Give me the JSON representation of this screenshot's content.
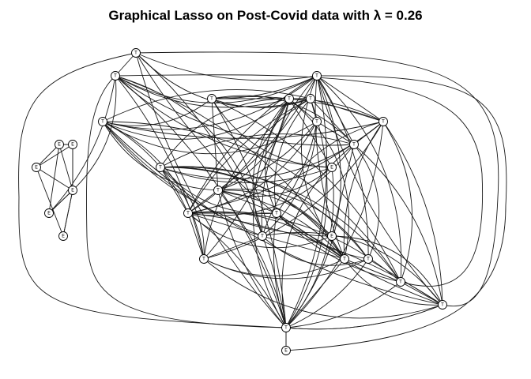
{
  "title": "Graphical Lasso on Post-Covid data with λ =  0.26",
  "nodes": [
    {
      "id": "n1",
      "label": "T"
    },
    {
      "id": "n2",
      "label": "T"
    },
    {
      "id": "n3",
      "label": "T"
    },
    {
      "id": "n4",
      "label": "T"
    },
    {
      "id": "n5",
      "label": "T"
    },
    {
      "id": "n6",
      "label": "E"
    },
    {
      "id": "n7",
      "label": "E"
    },
    {
      "id": "n8",
      "label": "E"
    },
    {
      "id": "n9",
      "label": "E"
    },
    {
      "id": "n10",
      "label": "E"
    },
    {
      "id": "n11",
      "label": "E"
    },
    {
      "id": "n12",
      "label": "E"
    },
    {
      "id": "n13",
      "label": "T"
    },
    {
      "id": "n14",
      "label": "T"
    },
    {
      "id": "n15",
      "label": "T"
    },
    {
      "id": "n16",
      "label": "T"
    },
    {
      "id": "n17",
      "label": "T"
    },
    {
      "id": "n18",
      "label": "T"
    },
    {
      "id": "n19",
      "label": "E"
    },
    {
      "id": "n20",
      "label": "E"
    },
    {
      "id": "n21",
      "label": "T"
    },
    {
      "id": "n22",
      "label": "T"
    },
    {
      "id": "n23",
      "label": "T"
    },
    {
      "id": "n24",
      "label": "T"
    },
    {
      "id": "n25",
      "label": "T"
    },
    {
      "id": "n26",
      "label": "T"
    },
    {
      "id": "n27",
      "label": "E"
    },
    {
      "id": "n28",
      "label": "T"
    },
    {
      "id": "n29",
      "label": "T"
    },
    {
      "id": "n30",
      "label": "T"
    },
    {
      "id": "n31",
      "label": "T"
    },
    {
      "id": "n32",
      "label": "T"
    },
    {
      "id": "n33",
      "label": "E"
    }
  ],
  "edges": [
    [
      "n1",
      "n2"
    ],
    [
      "n1",
      "n3"
    ],
    [
      "n1",
      "n31"
    ],
    [
      "n1",
      "n30"
    ],
    [
      "n1",
      "n32"
    ],
    [
      "n1",
      "n14"
    ],
    [
      "n2",
      "n3"
    ],
    [
      "n2",
      "n13"
    ],
    [
      "n2",
      "n11"
    ],
    [
      "n2",
      "n12"
    ],
    [
      "n2",
      "n19"
    ],
    [
      "n2",
      "n24"
    ],
    [
      "n2",
      "n25"
    ],
    [
      "n2",
      "n31"
    ],
    [
      "n2",
      "n17"
    ],
    [
      "n2",
      "n26"
    ],
    [
      "n3",
      "n4"
    ],
    [
      "n3",
      "n5"
    ],
    [
      "n3",
      "n16"
    ],
    [
      "n3",
      "n17"
    ],
    [
      "n3",
      "n21"
    ],
    [
      "n3",
      "n28"
    ],
    [
      "n3",
      "n29"
    ],
    [
      "n3",
      "n30"
    ],
    [
      "n3",
      "n24"
    ],
    [
      "n3",
      "n25"
    ],
    [
      "n3",
      "n22"
    ],
    [
      "n3",
      "n31"
    ],
    [
      "n3",
      "n32"
    ],
    [
      "n3",
      "n27"
    ],
    [
      "n4",
      "n13"
    ],
    [
      "n4",
      "n14"
    ],
    [
      "n4",
      "n16"
    ],
    [
      "n4",
      "n21"
    ],
    [
      "n4",
      "n5"
    ],
    [
      "n4",
      "n17"
    ],
    [
      "n4",
      "n29"
    ],
    [
      "n4",
      "n31"
    ],
    [
      "n4",
      "n19"
    ],
    [
      "n5",
      "n13"
    ],
    [
      "n5",
      "n14"
    ],
    [
      "n5",
      "n16"
    ],
    [
      "n5",
      "n15"
    ],
    [
      "n5",
      "n21"
    ],
    [
      "n5",
      "n20"
    ],
    [
      "n5",
      "n22"
    ],
    [
      "n5",
      "n24"
    ],
    [
      "n5",
      "n26"
    ],
    [
      "n5",
      "n29"
    ],
    [
      "n5",
      "n30"
    ],
    [
      "n6",
      "n7"
    ],
    [
      "n6",
      "n8"
    ],
    [
      "n6",
      "n9"
    ],
    [
      "n6",
      "n11"
    ],
    [
      "n7",
      "n9"
    ],
    [
      "n7",
      "n8"
    ],
    [
      "n7",
      "n12"
    ],
    [
      "n8",
      "n10"
    ],
    [
      "n8",
      "n12"
    ],
    [
      "n9",
      "n10"
    ],
    [
      "n9",
      "n11"
    ],
    [
      "n10",
      "n12"
    ],
    [
      "n11",
      "n12"
    ],
    [
      "n13",
      "n14"
    ],
    [
      "n13",
      "n15"
    ],
    [
      "n13",
      "n16"
    ],
    [
      "n13",
      "n18"
    ],
    [
      "n13",
      "n21"
    ],
    [
      "n13",
      "n22"
    ],
    [
      "n13",
      "n24"
    ],
    [
      "n13",
      "n27"
    ],
    [
      "n13",
      "n23"
    ],
    [
      "n13",
      "n19"
    ],
    [
      "n13",
      "n26"
    ],
    [
      "n14",
      "n15"
    ],
    [
      "n14",
      "n16"
    ],
    [
      "n14",
      "n17"
    ],
    [
      "n14",
      "n22"
    ],
    [
      "n14",
      "n23"
    ],
    [
      "n14",
      "n26"
    ],
    [
      "n15",
      "n17"
    ],
    [
      "n15",
      "n21"
    ],
    [
      "n15",
      "n22"
    ],
    [
      "n15",
      "n23"
    ],
    [
      "n15",
      "n24"
    ],
    [
      "n16",
      "n17"
    ],
    [
      "n16",
      "n18"
    ],
    [
      "n16",
      "n22"
    ],
    [
      "n16",
      "n24"
    ],
    [
      "n16",
      "n26"
    ],
    [
      "n16",
      "n25"
    ],
    [
      "n16",
      "n29"
    ],
    [
      "n16",
      "n31"
    ],
    [
      "n17",
      "n18"
    ],
    [
      "n17",
      "n20"
    ],
    [
      "n17",
      "n22"
    ],
    [
      "n17",
      "n30"
    ],
    [
      "n17",
      "n28"
    ],
    [
      "n17",
      "n31"
    ],
    [
      "n18",
      "n19"
    ],
    [
      "n18",
      "n20"
    ],
    [
      "n18",
      "n22"
    ],
    [
      "n18",
      "n23"
    ],
    [
      "n18",
      "n25"
    ],
    [
      "n18",
      "n26"
    ],
    [
      "n18",
      "n27"
    ],
    [
      "n18",
      "n28"
    ],
    [
      "n18",
      "n29"
    ],
    [
      "n19",
      "n21"
    ],
    [
      "n19",
      "n31"
    ],
    [
      "n20",
      "n22"
    ],
    [
      "n20",
      "n30"
    ],
    [
      "n21",
      "n22"
    ],
    [
      "n21",
      "n23"
    ],
    [
      "n21",
      "n27"
    ],
    [
      "n21",
      "n28"
    ],
    [
      "n21",
      "n25"
    ],
    [
      "n21",
      "n31"
    ],
    [
      "n22",
      "n23"
    ],
    [
      "n22",
      "n24"
    ],
    [
      "n22",
      "n25"
    ],
    [
      "n22",
      "n26"
    ],
    [
      "n22",
      "n30"
    ],
    [
      "n22",
      "n31"
    ],
    [
      "n22",
      "n29"
    ],
    [
      "n23",
      "n25"
    ],
    [
      "n23",
      "n27"
    ],
    [
      "n23",
      "n28"
    ],
    [
      "n23",
      "n29"
    ],
    [
      "n23",
      "n31"
    ],
    [
      "n24",
      "n26"
    ],
    [
      "n24",
      "n28"
    ],
    [
      "n24",
      "n27"
    ],
    [
      "n24",
      "n30"
    ],
    [
      "n25",
      "n27"
    ],
    [
      "n25",
      "n29"
    ],
    [
      "n26",
      "n27"
    ],
    [
      "n26",
      "n28"
    ],
    [
      "n26",
      "n30"
    ],
    [
      "n27",
      "n29"
    ],
    [
      "n27",
      "n30"
    ],
    [
      "n27",
      "n31"
    ],
    [
      "n28",
      "n30"
    ],
    [
      "n28",
      "n31"
    ],
    [
      "n29",
      "n31"
    ],
    [
      "n29",
      "n30"
    ],
    [
      "n30",
      "n31"
    ],
    [
      "n30",
      "n32"
    ],
    [
      "n31",
      "n32"
    ],
    [
      "n32",
      "n33"
    ],
    [
      "n31",
      "n33"
    ],
    [
      "n13",
      "n31"
    ],
    [
      "n21",
      "n31"
    ],
    [
      "n14",
      "n31"
    ],
    [
      "n16",
      "n30"
    ]
  ]
}
